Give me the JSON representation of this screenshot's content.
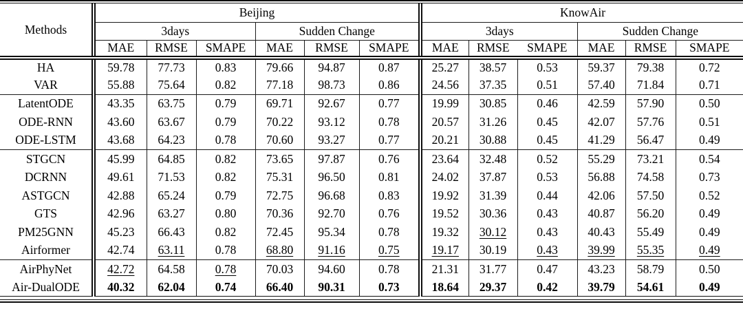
{
  "table": {
    "header": {
      "methods": "Methods",
      "datasets": [
        "Beijing",
        "KnowAir"
      ],
      "horizons": [
        "3days",
        "Sudden Change"
      ],
      "metrics": [
        "MAE",
        "RMSE",
        "SMAPE"
      ]
    },
    "style_legend": {
      "bold": "best result",
      "underline": "second-best result"
    },
    "rows": [
      {
        "method": "HA",
        "group_start": false,
        "values": [
          "59.78",
          "77.73",
          "0.83",
          "79.66",
          "94.87",
          "0.87",
          "25.27",
          "38.57",
          "0.53",
          "59.37",
          "79.38",
          "0.72"
        ],
        "marks": [
          "",
          "",
          "",
          "",
          "",
          "",
          "",
          "",
          "",
          "",
          "",
          ""
        ]
      },
      {
        "method": "VAR",
        "group_start": false,
        "values": [
          "55.88",
          "75.64",
          "0.82",
          "77.18",
          "98.73",
          "0.86",
          "24.56",
          "37.35",
          "0.51",
          "57.40",
          "71.84",
          "0.71"
        ],
        "marks": [
          "",
          "",
          "",
          "",
          "",
          "",
          "",
          "",
          "",
          "",
          "",
          ""
        ]
      },
      {
        "method": "LatentODE",
        "group_start": true,
        "values": [
          "43.35",
          "63.75",
          "0.79",
          "69.71",
          "92.67",
          "0.77",
          "19.99",
          "30.85",
          "0.46",
          "42.59",
          "57.90",
          "0.50"
        ],
        "marks": [
          "",
          "",
          "",
          "",
          "",
          "",
          "",
          "",
          "",
          "",
          "",
          ""
        ]
      },
      {
        "method": "ODE-RNN",
        "group_start": false,
        "values": [
          "43.60",
          "63.67",
          "0.79",
          "70.22",
          "93.12",
          "0.78",
          "20.57",
          "31.26",
          "0.45",
          "42.07",
          "57.76",
          "0.51"
        ],
        "marks": [
          "",
          "",
          "",
          "",
          "",
          "",
          "",
          "",
          "",
          "",
          "",
          ""
        ]
      },
      {
        "method": "ODE-LSTM",
        "group_start": false,
        "values": [
          "43.68",
          "64.23",
          "0.78",
          "70.60",
          "93.27",
          "0.77",
          "20.21",
          "30.88",
          "0.45",
          "41.29",
          "56.47",
          "0.49"
        ],
        "marks": [
          "",
          "",
          "",
          "",
          "",
          "",
          "",
          "",
          "",
          "",
          "",
          ""
        ]
      },
      {
        "method": "STGCN",
        "group_start": true,
        "values": [
          "45.99",
          "64.85",
          "0.82",
          "73.65",
          "97.87",
          "0.76",
          "23.64",
          "32.48",
          "0.52",
          "55.29",
          "73.21",
          "0.54"
        ],
        "marks": [
          "",
          "",
          "",
          "",
          "",
          "",
          "",
          "",
          "",
          "",
          "",
          ""
        ]
      },
      {
        "method": "DCRNN",
        "group_start": false,
        "values": [
          "49.61",
          "71.53",
          "0.82",
          "75.31",
          "96.50",
          "0.81",
          "24.02",
          "37.87",
          "0.53",
          "56.88",
          "74.58",
          "0.73"
        ],
        "marks": [
          "",
          "",
          "",
          "",
          "",
          "",
          "",
          "",
          "",
          "",
          "",
          ""
        ]
      },
      {
        "method": "ASTGCN",
        "group_start": false,
        "values": [
          "42.88",
          "65.24",
          "0.79",
          "72.75",
          "96.68",
          "0.83",
          "19.92",
          "31.39",
          "0.44",
          "42.06",
          "57.50",
          "0.52"
        ],
        "marks": [
          "",
          "",
          "",
          "",
          "",
          "",
          "",
          "",
          "",
          "",
          "",
          ""
        ]
      },
      {
        "method": "GTS",
        "group_start": false,
        "values": [
          "42.96",
          "63.27",
          "0.80",
          "70.36",
          "92.70",
          "0.76",
          "19.52",
          "30.36",
          "0.43",
          "40.87",
          "56.20",
          "0.49"
        ],
        "marks": [
          "",
          "",
          "",
          "",
          "",
          "",
          "",
          "",
          "",
          "",
          "",
          ""
        ]
      },
      {
        "method": "PM25GNN",
        "group_start": false,
        "values": [
          "45.23",
          "66.43",
          "0.82",
          "72.45",
          "95.34",
          "0.78",
          "19.32",
          "30.12",
          "0.43",
          "40.43",
          "55.49",
          "0.49"
        ],
        "marks": [
          "",
          "",
          "",
          "",
          "",
          "",
          "",
          "u",
          "",
          "",
          "",
          ""
        ]
      },
      {
        "method": "Airformer",
        "group_start": false,
        "values": [
          "42.74",
          "63.11",
          "0.78",
          "68.80",
          "91.16",
          "0.75",
          "19.17",
          "30.19",
          "0.43",
          "39.99",
          "55.35",
          "0.49"
        ],
        "marks": [
          "",
          "u",
          "",
          "u",
          "u",
          "u",
          "u",
          "",
          "u",
          "u",
          "u",
          "u"
        ]
      },
      {
        "method": "AirPhyNet",
        "group_start": true,
        "values": [
          "42.72",
          "64.58",
          "0.78",
          "70.03",
          "94.60",
          "0.78",
          "21.31",
          "31.77",
          "0.47",
          "43.23",
          "58.79",
          "0.50"
        ],
        "marks": [
          "u",
          "",
          "u",
          "",
          "",
          "",
          "",
          "",
          "",
          "",
          "",
          ""
        ]
      },
      {
        "method": "Air-DualODE",
        "group_start": false,
        "values": [
          "40.32",
          "62.04",
          "0.74",
          "66.40",
          "90.31",
          "0.73",
          "18.64",
          "29.37",
          "0.42",
          "39.79",
          "54.61",
          "0.49"
        ],
        "marks": [
          "b",
          "b",
          "b",
          "b",
          "b",
          "b",
          "b",
          "b",
          "b",
          "b",
          "b",
          "b"
        ]
      }
    ]
  }
}
